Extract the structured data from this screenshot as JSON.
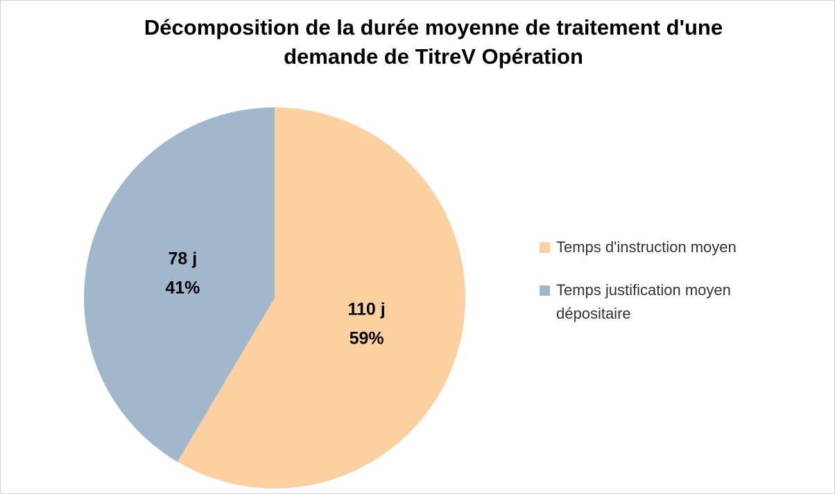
{
  "chart_data": {
    "type": "pie",
    "title": [
      "Décomposition de la durée moyenne de traitement d'une",
      "demande de TitreV Opération"
    ],
    "categories": [
      "Temps d'instruction moyen",
      "Temps justification moyen dépositaire"
    ],
    "values": [
      110,
      78
    ],
    "value_labels": [
      "110 j",
      "78 j"
    ],
    "percents": [
      59,
      41
    ],
    "percent_labels": [
      "59%",
      "41%"
    ],
    "colors": [
      "#fdd0a2",
      "#a1b8cc"
    ]
  }
}
